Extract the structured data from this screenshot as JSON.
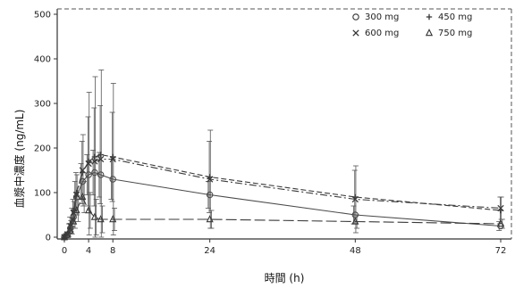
{
  "chart_data": {
    "type": "line",
    "xlabel": "時間 (h)",
    "ylabel": "血漿中濃度 (ng/mL)",
    "xlim": [
      0,
      72
    ],
    "ylim": [
      0,
      500
    ],
    "x_ticks": [
      0,
      4,
      8,
      24,
      48,
      72
    ],
    "x_tick_labels": [
      "0",
      "4",
      "8",
      "24",
      "48",
      "72"
    ],
    "y_ticks": [
      0,
      100,
      200,
      300,
      400,
      500
    ],
    "y_tick_labels": [
      "0",
      "100",
      "200",
      "300",
      "400",
      "500"
    ],
    "legend_position": "top-right",
    "grid": false,
    "series": [
      {
        "name": "300 mg",
        "marker": "circle",
        "dash": "solid",
        "color": "#4a4a4a",
        "x": [
          0,
          0.5,
          1,
          1.5,
          2,
          3,
          4,
          5,
          6,
          8,
          24,
          48,
          72
        ],
        "y": [
          0,
          5,
          20,
          45,
          90,
          125,
          140,
          145,
          140,
          130,
          95,
          50,
          25
        ],
        "err": [
          0,
          3,
          10,
          20,
          35,
          40,
          45,
          50,
          50,
          45,
          30,
          20,
          10
        ]
      },
      {
        "name": "450 mg",
        "marker": "plus",
        "dash": "dashed",
        "color": "#3a3a3a",
        "x": [
          0,
          0.5,
          1,
          1.5,
          2,
          3,
          4,
          5,
          6,
          8,
          24,
          48,
          72
        ],
        "y": [
          0,
          8,
          30,
          60,
          100,
          145,
          170,
          180,
          185,
          180,
          135,
          90,
          60
        ],
        "err": [
          0,
          4,
          15,
          25,
          45,
          70,
          100,
          110,
          110,
          100,
          80,
          60,
          30
        ]
      },
      {
        "name": "600 mg",
        "marker": "x",
        "dash": "dashdot",
        "color": "#3a3a3a",
        "x": [
          0,
          0.5,
          1,
          1.5,
          2,
          3,
          4,
          5,
          6,
          8,
          24,
          48,
          72
        ],
        "y": [
          0,
          6,
          25,
          55,
          95,
          150,
          165,
          170,
          175,
          175,
          130,
          85,
          65
        ],
        "err": [
          0,
          4,
          12,
          25,
          45,
          80,
          160,
          190,
          200,
          170,
          110,
          75,
          25
        ]
      },
      {
        "name": "750 mg",
        "marker": "triangle",
        "dash": "longdash",
        "color": "#3a3a3a",
        "x": [
          0,
          0.5,
          1,
          1.5,
          2,
          3,
          4,
          5,
          6,
          8,
          24,
          48,
          72
        ],
        "y": [
          0,
          5,
          15,
          35,
          60,
          90,
          60,
          45,
          40,
          40,
          40,
          35,
          30
        ],
        "err": [
          0,
          3,
          8,
          15,
          25,
          35,
          40,
          40,
          30,
          25,
          20,
          15,
          10
        ]
      }
    ]
  }
}
